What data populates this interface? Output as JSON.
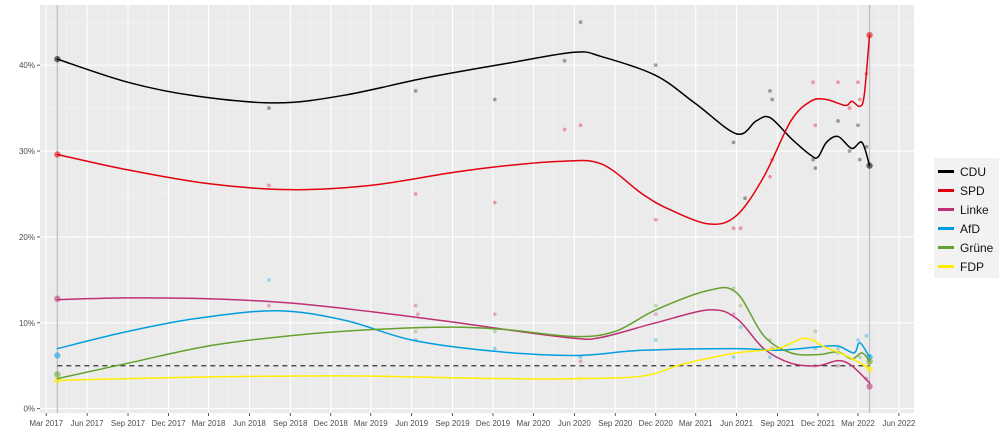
{
  "chart_data": {
    "type": "line",
    "x_ticks": [
      "Mar 2017",
      "Jun 2017",
      "Sep 2017",
      "Dec 2017",
      "Mar 2018",
      "Jun 2018",
      "Sep 2018",
      "Dec 2018",
      "Mar 2019",
      "Jun 2019",
      "Sep 2019",
      "Dec 2019",
      "Mar 2020",
      "Jun 2020",
      "Sep 2020",
      "Dec 2020",
      "Mar 2021",
      "Jun 2021",
      "Sep 2021",
      "Dec 2021",
      "Mar 2022",
      "Jun 2022"
    ],
    "y_ticks": [
      "0%",
      "10%",
      "20%",
      "30%",
      "40%"
    ],
    "y_tick_values": [
      0,
      10,
      20,
      30,
      40
    ],
    "ylim": [
      -0.5,
      47
    ],
    "xlim": [
      "2017-02-15",
      "2022-07-05"
    ],
    "election_dates": [
      "2017-03-26",
      "2022-03-27"
    ],
    "threshold": 5,
    "legend_position": "right",
    "grid": true,
    "series": [
      {
        "name": "CDU",
        "color": "#000000",
        "curve": [
          [
            "2017-03-26",
            40.7
          ],
          [
            "2017-09-01",
            38.0
          ],
          [
            "2018-02-01",
            36.4
          ],
          [
            "2018-08-01",
            35.6
          ],
          [
            "2019-01-01",
            36.5
          ],
          [
            "2019-07-01",
            38.5
          ],
          [
            "2020-01-01",
            40.2
          ],
          [
            "2020-06-01",
            41.5
          ],
          [
            "2020-08-01",
            41.0
          ],
          [
            "2020-12-01",
            38.8
          ],
          [
            "2021-03-01",
            35.5
          ],
          [
            "2021-06-01",
            32.0
          ],
          [
            "2021-07-15",
            33.5
          ],
          [
            "2021-08-15",
            33.9
          ],
          [
            "2021-10-01",
            31.5
          ],
          [
            "2021-11-15",
            29.5
          ],
          [
            "2021-12-01",
            29.3
          ],
          [
            "2021-12-20",
            31.0
          ],
          [
            "2022-01-15",
            31.7
          ],
          [
            "2022-02-15",
            30.3
          ],
          [
            "2022-03-10",
            31.0
          ],
          [
            "2022-03-27",
            28.3
          ]
        ],
        "points": [
          [
            "2017-03-26",
            40.7
          ],
          [
            "2018-07-15",
            35.0
          ],
          [
            "2019-06-10",
            37.0
          ],
          [
            "2019-12-05",
            36.0
          ],
          [
            "2020-05-10",
            40.5
          ],
          [
            "2020-06-15",
            45.0
          ],
          [
            "2020-12-01",
            40.0
          ],
          [
            "2021-05-25",
            31.0
          ],
          [
            "2021-06-20",
            24.5
          ],
          [
            "2021-08-15",
            37.0
          ],
          [
            "2021-08-20",
            36.0
          ],
          [
            "2021-11-20",
            29.0
          ],
          [
            "2021-11-25",
            28.0
          ],
          [
            "2022-01-15",
            33.5
          ],
          [
            "2022-02-10",
            30.0
          ],
          [
            "2022-03-01",
            33.0
          ],
          [
            "2022-03-05",
            29.0
          ],
          [
            "2022-03-20",
            30.5
          ],
          [
            "2022-03-27",
            28.3
          ]
        ]
      },
      {
        "name": "SPD",
        "color": "#e3000f",
        "curve": [
          [
            "2017-03-26",
            29.6
          ],
          [
            "2017-09-01",
            27.8
          ],
          [
            "2018-03-01",
            26.2
          ],
          [
            "2018-09-01",
            25.5
          ],
          [
            "2019-03-01",
            26.0
          ],
          [
            "2019-09-01",
            27.5
          ],
          [
            "2020-01-01",
            28.3
          ],
          [
            "2020-05-01",
            28.8
          ],
          [
            "2020-08-01",
            28.5
          ],
          [
            "2020-11-01",
            25.0
          ],
          [
            "2021-01-01",
            23.2
          ],
          [
            "2021-04-01",
            21.5
          ],
          [
            "2021-06-01",
            22.5
          ],
          [
            "2021-08-01",
            27.0
          ],
          [
            "2021-10-01",
            33.5
          ],
          [
            "2021-11-15",
            35.8
          ],
          [
            "2021-12-20",
            36.0
          ],
          [
            "2022-02-01",
            35.3
          ],
          [
            "2022-02-15",
            35.8
          ],
          [
            "2022-03-05",
            35.2
          ],
          [
            "2022-03-15",
            36.5
          ],
          [
            "2022-03-27",
            43.5
          ]
        ],
        "points": [
          [
            "2017-03-26",
            29.6
          ],
          [
            "2018-07-15",
            26.0
          ],
          [
            "2019-06-10",
            25.0
          ],
          [
            "2019-12-05",
            24.0
          ],
          [
            "2020-05-10",
            32.5
          ],
          [
            "2020-06-15",
            33.0
          ],
          [
            "2020-12-01",
            22.0
          ],
          [
            "2021-05-25",
            21.0
          ],
          [
            "2021-06-10",
            21.0
          ],
          [
            "2021-08-15",
            27.0
          ],
          [
            "2021-08-20",
            29.0
          ],
          [
            "2021-11-20",
            38.0
          ],
          [
            "2021-11-25",
            33.0
          ],
          [
            "2022-01-15",
            38.0
          ],
          [
            "2022-02-10",
            35.0
          ],
          [
            "2022-03-01",
            38.0
          ],
          [
            "2022-03-05",
            36.0
          ],
          [
            "2022-03-20",
            39.0
          ],
          [
            "2022-03-27",
            43.5
          ]
        ]
      },
      {
        "name": "Linke",
        "color": "#be3075",
        "curve": [
          [
            "2017-03-26",
            12.7
          ],
          [
            "2017-09-01",
            12.9
          ],
          [
            "2018-03-01",
            12.8
          ],
          [
            "2018-09-01",
            12.3
          ],
          [
            "2019-03-01",
            11.3
          ],
          [
            "2019-09-01",
            10.1
          ],
          [
            "2020-01-01",
            9.2
          ],
          [
            "2020-06-01",
            8.2
          ],
          [
            "2020-08-01",
            8.3
          ],
          [
            "2020-12-01",
            10.0
          ],
          [
            "2021-04-01",
            11.5
          ],
          [
            "2021-06-01",
            10.5
          ],
          [
            "2021-08-01",
            7.0
          ],
          [
            "2021-10-01",
            5.3
          ],
          [
            "2021-12-01",
            5.0
          ],
          [
            "2022-01-15",
            5.6
          ],
          [
            "2022-02-15",
            5.0
          ],
          [
            "2022-03-27",
            3.0
          ]
        ],
        "points": [
          [
            "2017-03-26",
            12.8
          ],
          [
            "2018-07-15",
            12.0
          ],
          [
            "2019-06-10",
            12.0
          ],
          [
            "2019-06-15",
            11.0
          ],
          [
            "2019-12-05",
            11.0
          ],
          [
            "2020-06-15",
            5.5
          ],
          [
            "2020-12-01",
            11.0
          ],
          [
            "2021-05-25",
            11.0
          ],
          [
            "2021-08-20",
            7.0
          ],
          [
            "2021-11-25",
            5.0
          ],
          [
            "2022-01-15",
            5.0
          ],
          [
            "2022-03-20",
            3.5
          ],
          [
            "2022-03-27",
            2.6
          ]
        ]
      },
      {
        "name": "AfD",
        "color": "#009ee0",
        "curve": [
          [
            "2017-03-26",
            7.0
          ],
          [
            "2017-09-01",
            9.0
          ],
          [
            "2018-02-01",
            10.5
          ],
          [
            "2018-08-01",
            11.4
          ],
          [
            "2019-01-01",
            10.3
          ],
          [
            "2019-06-01",
            8.0
          ],
          [
            "2019-12-01",
            6.7
          ],
          [
            "2020-06-01",
            6.2
          ],
          [
            "2020-11-01",
            6.8
          ],
          [
            "2021-06-01",
            7.0
          ],
          [
            "2021-09-01",
            6.8
          ],
          [
            "2021-12-01",
            7.2
          ],
          [
            "2022-01-15",
            7.3
          ],
          [
            "2022-02-20",
            6.5
          ],
          [
            "2022-03-05",
            7.7
          ],
          [
            "2022-03-27",
            6.0
          ]
        ],
        "points": [
          [
            "2017-03-26",
            6.2
          ],
          [
            "2018-07-15",
            15.0
          ],
          [
            "2019-06-10",
            8.0
          ],
          [
            "2019-12-05",
            7.0
          ],
          [
            "2020-06-15",
            6.0
          ],
          [
            "2020-12-01",
            8.0
          ],
          [
            "2021-05-25",
            6.0
          ],
          [
            "2021-06-10",
            9.5
          ],
          [
            "2021-08-15",
            6.0
          ],
          [
            "2021-11-25",
            7.0
          ],
          [
            "2022-01-15",
            6.5
          ],
          [
            "2022-03-01",
            8.0
          ],
          [
            "2022-03-20",
            8.5
          ],
          [
            "2022-03-27",
            6.0
          ]
        ]
      },
      {
        "name": "Grüne",
        "color": "#64a12d",
        "curve": [
          [
            "2017-03-26",
            3.5
          ],
          [
            "2017-09-01",
            5.3
          ],
          [
            "2018-03-01",
            7.3
          ],
          [
            "2018-09-01",
            8.5
          ],
          [
            "2019-03-01",
            9.2
          ],
          [
            "2019-09-01",
            9.5
          ],
          [
            "2020-01-01",
            9.2
          ],
          [
            "2020-06-01",
            8.4
          ],
          [
            "2020-09-01",
            9.0
          ],
          [
            "2020-12-01",
            11.5
          ],
          [
            "2021-04-01",
            13.8
          ],
          [
            "2021-06-01",
            13.5
          ],
          [
            "2021-08-01",
            8.5
          ],
          [
            "2021-10-01",
            6.5
          ],
          [
            "2021-12-01",
            6.3
          ],
          [
            "2022-01-15",
            6.6
          ],
          [
            "2022-02-15",
            5.8
          ],
          [
            "2022-03-10",
            6.5
          ],
          [
            "2022-03-27",
            5.5
          ]
        ],
        "points": [
          [
            "2017-03-26",
            4.0
          ],
          [
            "2019-06-10",
            9.0
          ],
          [
            "2019-12-05",
            9.0
          ],
          [
            "2020-12-01",
            12.0
          ],
          [
            "2021-05-25",
            14.0
          ],
          [
            "2021-06-10",
            12.0
          ],
          [
            "2021-08-15",
            8.0
          ],
          [
            "2021-11-25",
            9.0
          ],
          [
            "2022-01-15",
            7.0
          ],
          [
            "2022-03-05",
            6.0
          ],
          [
            "2022-03-27",
            5.5
          ]
        ]
      },
      {
        "name": "FDP",
        "color": "#ffed00",
        "curve": [
          [
            "2017-03-26",
            3.3
          ],
          [
            "2017-09-01",
            3.5
          ],
          [
            "2018-03-01",
            3.7
          ],
          [
            "2018-09-01",
            3.8
          ],
          [
            "2019-03-01",
            3.8
          ],
          [
            "2019-09-01",
            3.6
          ],
          [
            "2020-01-01",
            3.5
          ],
          [
            "2020-06-01",
            3.5
          ],
          [
            "2020-11-01",
            3.8
          ],
          [
            "2021-02-01",
            5.2
          ],
          [
            "2021-06-01",
            6.5
          ],
          [
            "2021-09-01",
            7.0
          ],
          [
            "2021-11-01",
            8.2
          ],
          [
            "2021-12-15",
            7.2
          ],
          [
            "2022-02-01",
            6.2
          ],
          [
            "2022-03-10",
            5.2
          ],
          [
            "2022-03-27",
            4.6
          ]
        ],
        "points": [
          [
            "2017-03-26",
            3.3
          ],
          [
            "2020-06-15",
            3.5
          ],
          [
            "2021-08-15",
            7.0
          ],
          [
            "2021-11-25",
            8.0
          ],
          [
            "2022-03-20",
            5.0
          ],
          [
            "2022-03-27",
            4.6
          ]
        ]
      }
    ]
  }
}
